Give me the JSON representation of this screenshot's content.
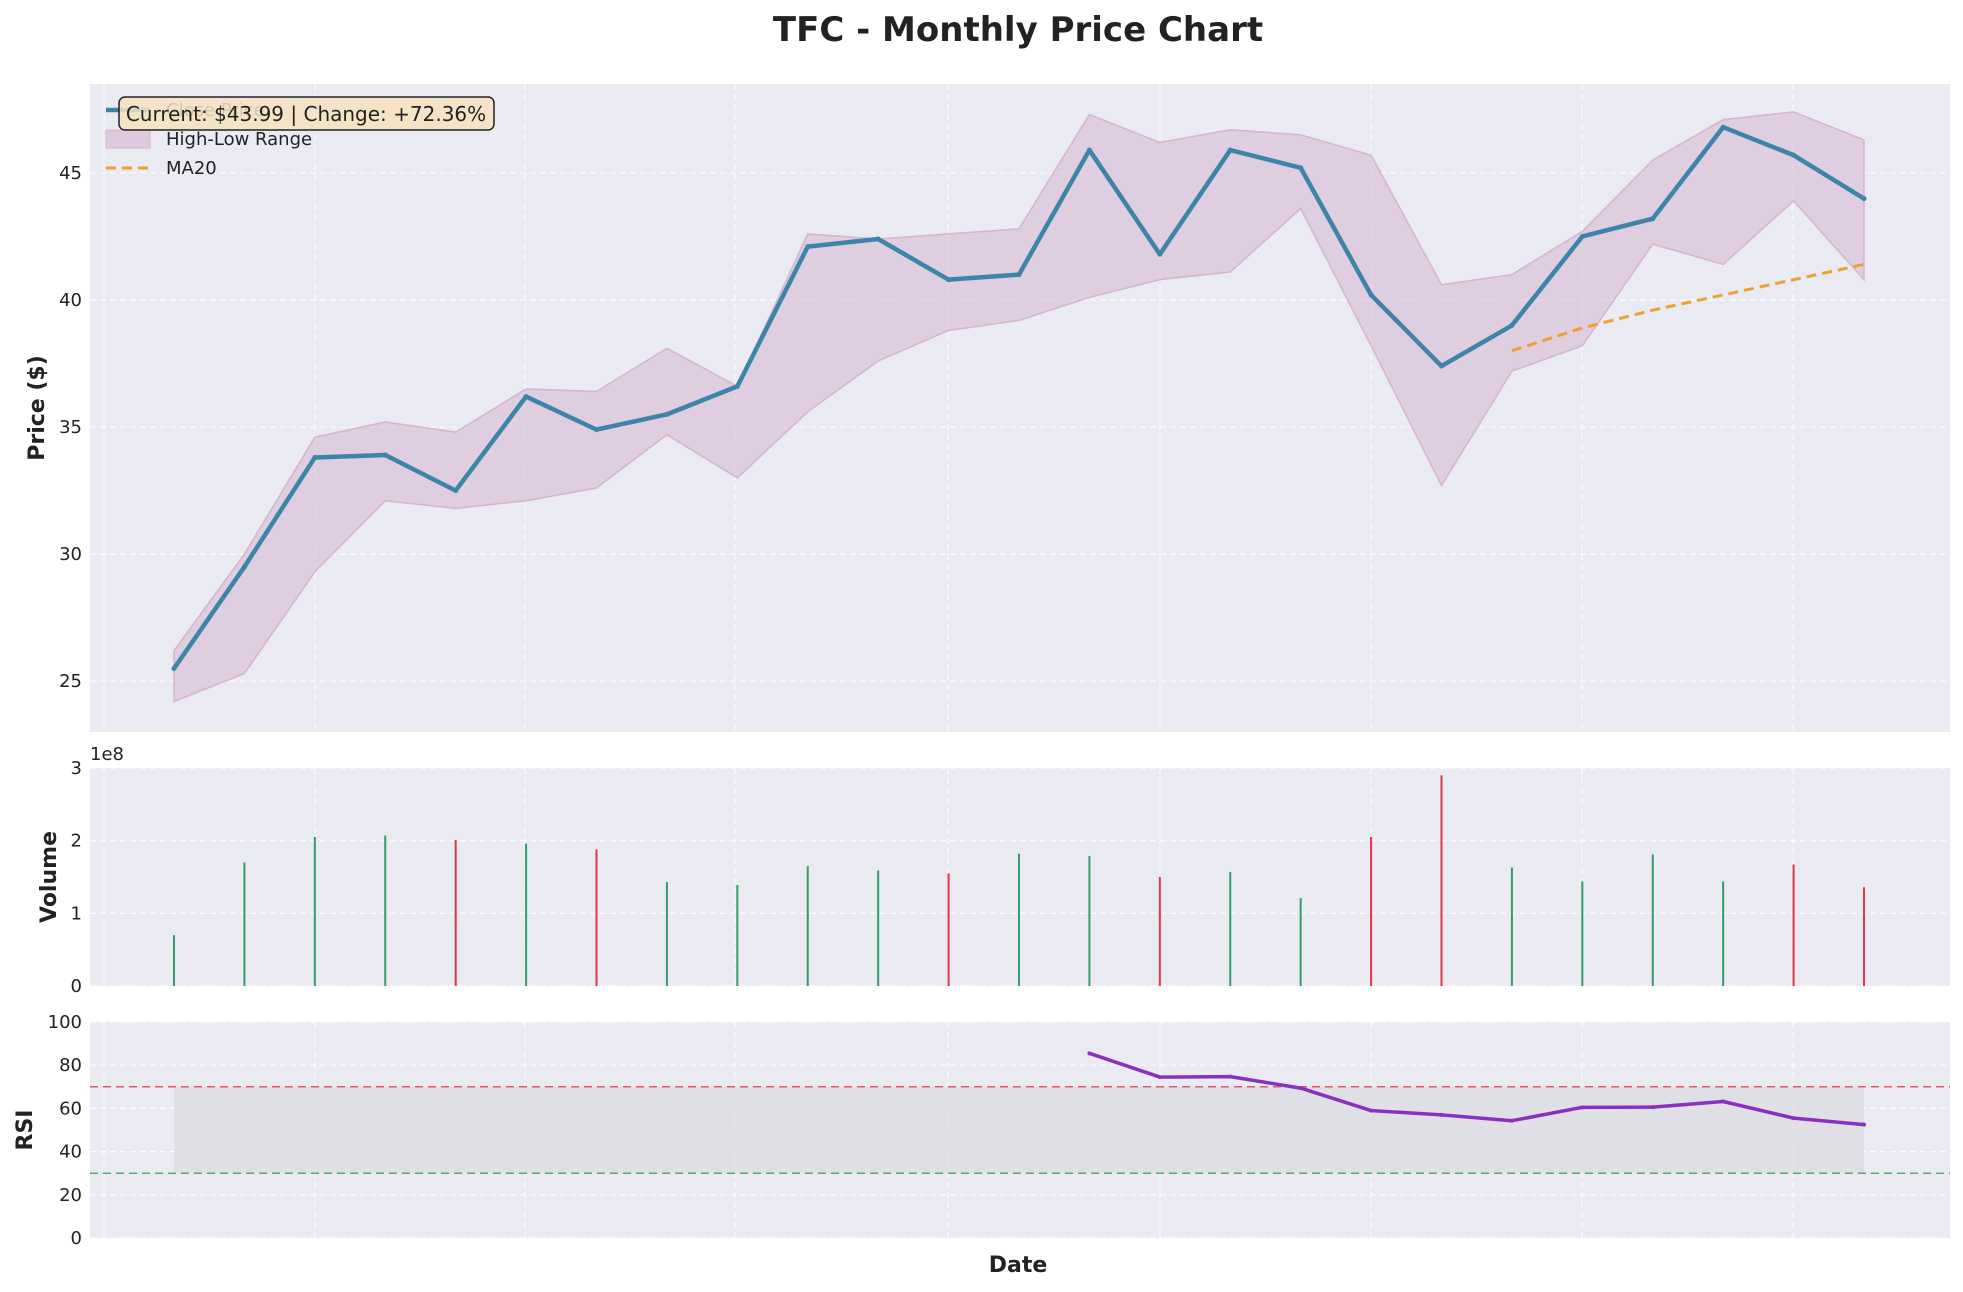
{
  "chart_data": {
    "title": "TFC - Monthly Price Chart",
    "xlabel": "Date",
    "annotation": "Current: $43.99 | Change: +72.36%",
    "colors": {
      "panel_bg": "#eaeaf2",
      "grid": "#ffffff",
      "close": "#3d85a8",
      "range_fill": "#d6b4d2",
      "ma20": "#f0a030",
      "volume_up": "#2e9e6b",
      "volume_down": "#e0364a",
      "rsi": "#8b2fc0",
      "rsi_band": "#dcdce2",
      "overbought": "#e0364a",
      "oversold": "#2e9e4a",
      "annotation_bg": "#f6e2bf"
    },
    "panels": [
      {
        "type": "line",
        "ylabel": "Price ($)",
        "ylim": [
          23,
          48.5
        ],
        "yticks": [
          25,
          30,
          35,
          40,
          45
        ],
        "legend_position": "upper-left",
        "legend": [
          {
            "key": "close",
            "label": "Close Price"
          },
          {
            "key": "range",
            "label": "High-Low Range"
          },
          {
            "key": "ma20",
            "label": "MA20"
          }
        ],
        "close": [
          25.5,
          29.5,
          33.8,
          33.9,
          32.5,
          36.2,
          34.9,
          35.5,
          36.6,
          42.1,
          42.4,
          40.8,
          41.0,
          45.9,
          41.8,
          45.9,
          45.2,
          40.2,
          37.4,
          39.0,
          42.5,
          43.2,
          46.8,
          45.7,
          43.99
        ],
        "high": [
          26.2,
          30.0,
          34.6,
          35.2,
          34.8,
          36.5,
          36.4,
          38.1,
          36.6,
          42.6,
          42.4,
          42.6,
          42.8,
          47.3,
          46.2,
          46.7,
          46.5,
          45.7,
          40.6,
          41.0,
          42.7,
          45.5,
          47.1,
          47.4,
          46.3
        ],
        "low": [
          24.2,
          25.3,
          29.3,
          32.1,
          31.8,
          32.1,
          32.6,
          34.7,
          33.0,
          35.6,
          37.6,
          38.8,
          39.2,
          40.1,
          40.8,
          41.1,
          43.6,
          38.2,
          32.7,
          37.2,
          38.2,
          42.2,
          41.4,
          43.9,
          40.8
        ],
        "ma20": [
          null,
          null,
          null,
          null,
          null,
          null,
          null,
          null,
          null,
          null,
          null,
          null,
          null,
          null,
          null,
          null,
          null,
          null,
          null,
          38.0,
          38.9,
          39.6,
          40.2,
          40.8,
          41.4
        ]
      },
      {
        "type": "bar",
        "ylabel": "Volume",
        "scale_label": "1e8",
        "ylim": [
          0,
          3.0
        ],
        "yticks": [
          0,
          1,
          2,
          3
        ],
        "values": [
          0.7,
          1.7,
          2.05,
          2.07,
          2.01,
          1.96,
          1.88,
          1.43,
          1.39,
          1.65,
          1.59,
          1.55,
          1.82,
          1.79,
          1.5,
          1.57,
          1.21,
          2.05,
          2.9,
          1.63,
          1.44,
          1.81,
          1.44,
          1.67,
          1.36
        ],
        "up": [
          true,
          true,
          true,
          true,
          false,
          true,
          false,
          true,
          true,
          true,
          true,
          false,
          true,
          true,
          false,
          true,
          true,
          false,
          false,
          true,
          true,
          true,
          true,
          false,
          false
        ]
      },
      {
        "type": "line",
        "ylabel": "RSI",
        "ylim": [
          0,
          100
        ],
        "yticks": [
          0,
          20,
          40,
          60,
          80,
          100
        ],
        "overbought": 70,
        "oversold": 30,
        "values": [
          null,
          null,
          null,
          null,
          null,
          null,
          null,
          null,
          null,
          null,
          null,
          null,
          null,
          85.5,
          74.5,
          74.7,
          69.4,
          59.0,
          57.0,
          54.3,
          60.5,
          60.6,
          63.2,
          55.5,
          52.5
        ]
      }
    ]
  }
}
